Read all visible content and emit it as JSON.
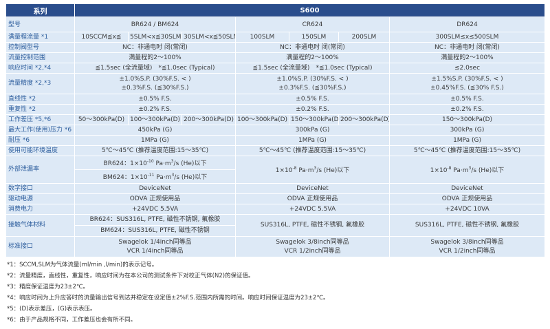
{
  "header": {
    "series_label": "系列",
    "series_value": "S600"
  },
  "rows": {
    "model": {
      "label": "型号",
      "br": "BR624 / BM624",
      "cr": "CR624",
      "dr": "DR624"
    },
    "range": {
      "label": "满量程流量 *1",
      "br": [
        "10SCCM≦x≦",
        "5SLM<x≦30SLM",
        "30SLM<x≦50SLM"
      ],
      "cr": [
        "100SLM",
        "150SLM",
        "200SLM"
      ],
      "dr": "300SLM≤x≤500SLM"
    },
    "valve": {
      "label": "控制阀型号",
      "br": "NC：非通电时 闭(常闭)",
      "cr": "NC：非通电时 闭(常闭)",
      "dr": "NC：非通电时 闭(常闭)"
    },
    "control": {
      "label": "流量控制范围",
      "br": "满量程的2～100%",
      "cr": "满量程的2～100%",
      "dr": "满量程的2～100%"
    },
    "response": {
      "label": "响应时间 *2,*4",
      "br": "≦1.5sec (全流量域)　*≦1.0sec (Typical)",
      "cr": "≦1.5sec (全流量域)　*≦1.0sec (Typical)",
      "dr": "≤2.0sec"
    },
    "accuracy": {
      "label": "流量精度 *2,*3",
      "br": [
        "±1.0%S.P. (30%F.S. < )",
        "±0.3%F.S. (≦30%F.S.)"
      ],
      "cr": [
        "±1.0%S.P. (30%F.S. < )",
        "±0.3%F.S. (≦30%F.S.)"
      ],
      "dr": [
        "±1.5%S.P. (30%F.S. < )",
        "±0.45%F.S. (≦30% F.S.)"
      ]
    },
    "linearity": {
      "label": "直线性 *2",
      "br": "±0.5% F.S.",
      "cr": "±0.5% F.S.",
      "dr": "±0.5% F.S."
    },
    "repeat": {
      "label": "重复性 *2",
      "br": "±0.2% F.S.",
      "cr": "±0.2% F.S.",
      "dr": "±0.2% F.S."
    },
    "diffp": {
      "label": "工作差压 *5,*6",
      "br": [
        "50～300kPa(D)",
        "100～300kPa(D)",
        "200～300kPa(D)"
      ],
      "cr": [
        "100～300kPa(D)",
        "150～300kPa(D)",
        "200～300kPa(D)"
      ],
      "dr": "150～300kPa(D)"
    },
    "maxp": {
      "label": "最大工作(使用)压力 *6",
      "br": "450kPa (G)",
      "cr": "300kPa (G)",
      "dr": "300kPa (G)"
    },
    "proof": {
      "label": "耐压 *6",
      "br": "1MPa (G)",
      "cr": "1MPa (G)",
      "dr": "1MPa (G)"
    },
    "temp": {
      "label": "使用可能环境温度",
      "br": "5℃～45℃ (推荐温度范围:15～35℃)",
      "cr": "5℃～45℃ (推荐温度范围:15～35℃)",
      "dr": "5℃～45℃ (推荐温度范围:15～35℃)"
    },
    "leak": {
      "label": "外部泄漏率",
      "br1": "BR624：1×10",
      "br1_exp": "-10",
      "br2": "BM624：1×10",
      "br2_exp": "-11",
      "unit": " Pa·m",
      "unit_exp": "3",
      "tail": "/s (He)以下",
      "cr": "1×10",
      "cr_exp": "-8",
      "dr": "1×10",
      "dr_exp": "-8"
    },
    "digital": {
      "label": "数字接口",
      "br": "DeviceNet",
      "cr": "DeviceNet",
      "dr": "DeviceNet"
    },
    "power_src": {
      "label": "驱动电源",
      "br": "ODVA 正规使用品",
      "cr": "ODVA 正规使用品",
      "dr": "ODVA 正规使用品"
    },
    "power": {
      "label": "消费电力",
      "br": "+24VDC 5.5VA",
      "cr": "+24VDC 5.5VA",
      "dr": "+24VDC 10VA"
    },
    "material": {
      "label": "接触气体材料",
      "br1": "BR624：SUS316L, PTFE, 磁性不锈钢, 氟橡胶",
      "br2": "BM624：SUS316L, PTFE, 磁性不锈钢",
      "cr": "SUS316L, PTFE, 磁性不锈钢, 氟橡胶",
      "dr": "SUS316L, PTFE, 磁性不锈钢, 氟橡胶"
    },
    "fitting": {
      "label": "标准接口",
      "br": [
        "Swagelok 1/4inch同等品",
        "VCR 1/4inch同等品"
      ],
      "cr": [
        "Swagelok 3/8inch同等品",
        "VCR 1/2inch同等品"
      ],
      "dr": [
        "Swagelok 3/8inch同等品",
        "VCR 1/2inch同等品"
      ]
    }
  },
  "notes": [
    "*1：SCCM,SLM为气体流量(ml/min ,l/min)的表示记号。",
    "*2：流量精度，直线性，重复性，响应时间为在本公司的测试条件下对校正气体(N2)的保证值。",
    "*3：精度保证温度为23±2℃。",
    "*4：响应时间为上升应答时的流量输出信号到达并稳定在设定值±2%F.S.范围内所需的时间。响应时间保证温度为23±2℃。",
    "*5：(D)表示差压，(G)表示表压。",
    "*6：由于产品规格不同，工作差压也会有所不同。"
  ]
}
